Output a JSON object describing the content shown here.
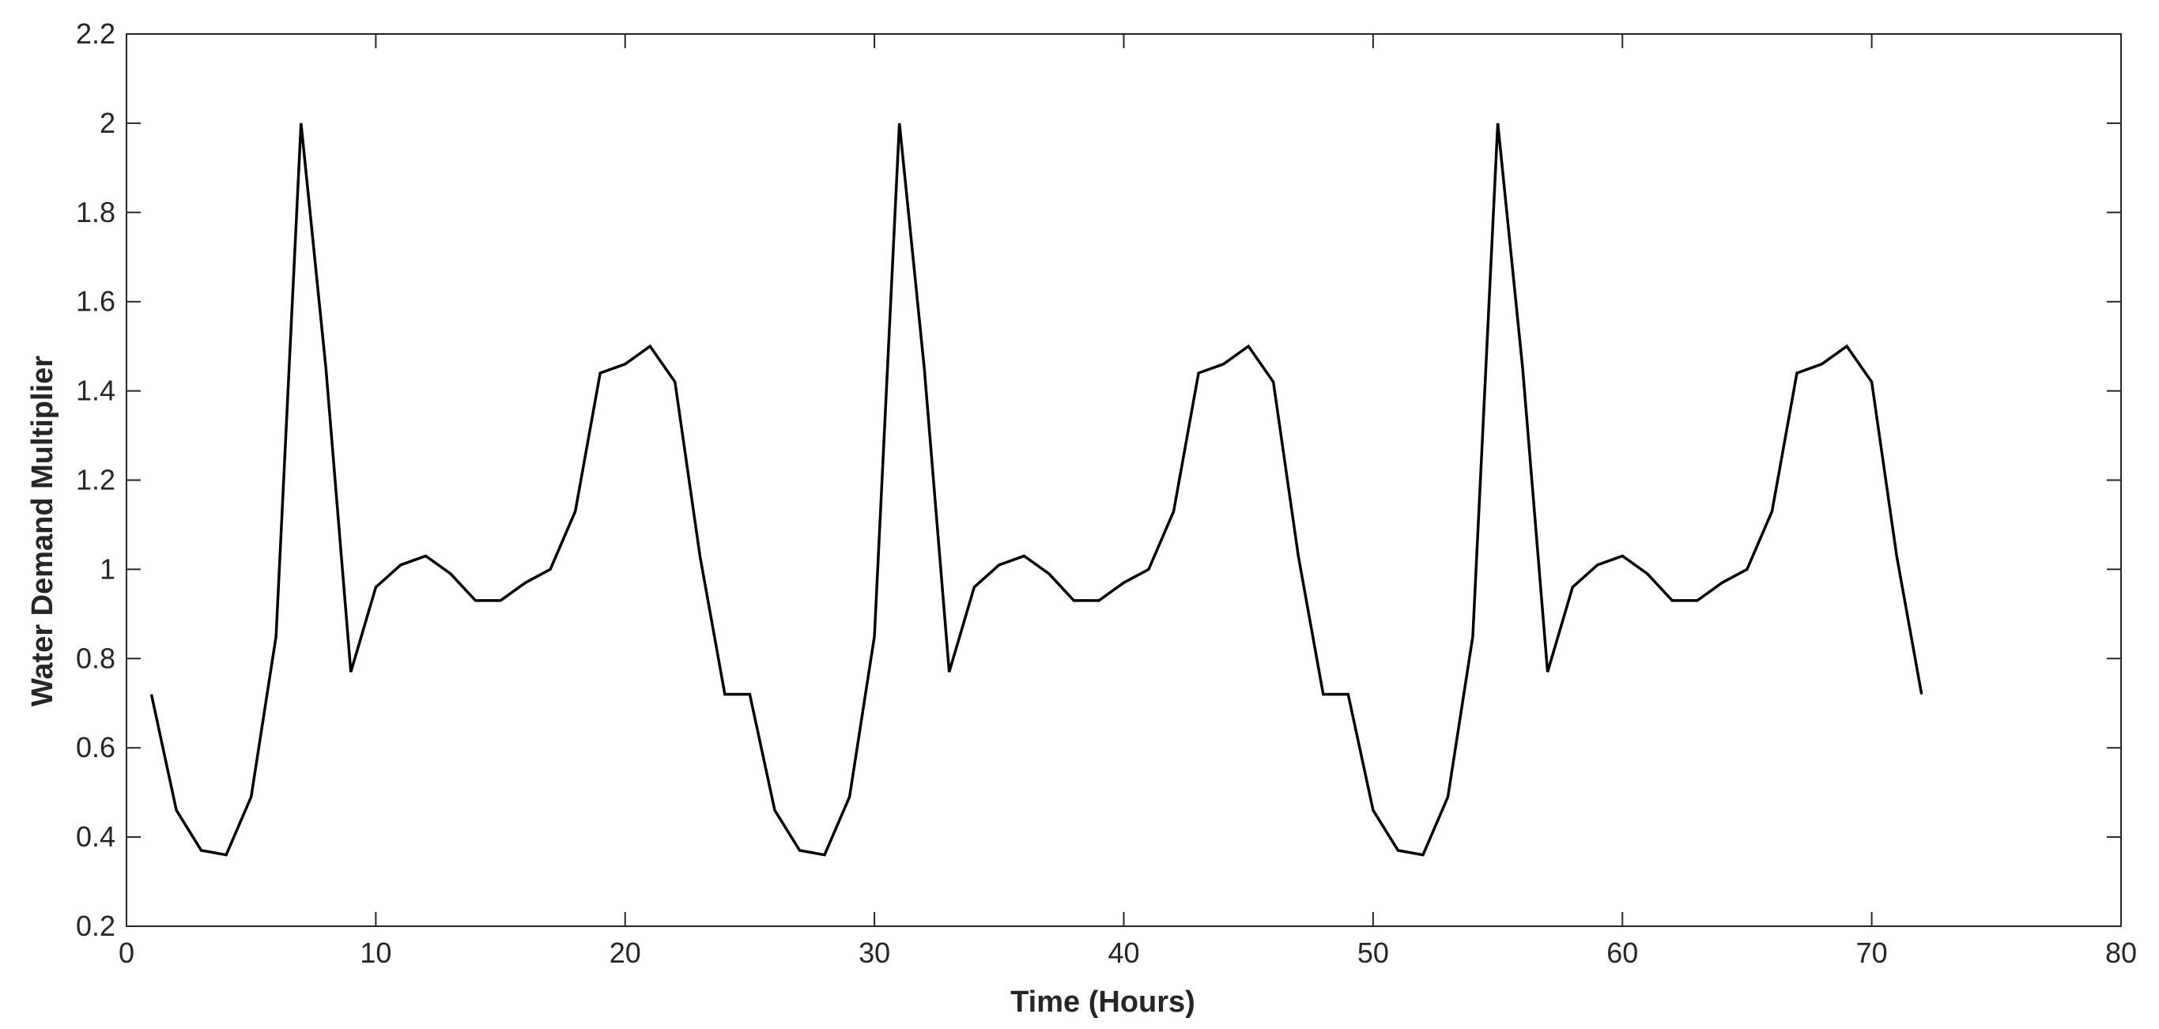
{
  "chart_data": {
    "type": "line",
    "title": "",
    "xlabel": "Time (Hours)",
    "ylabel": "Water Demand Multiplier",
    "xlim": [
      0,
      80
    ],
    "ylim": [
      0.2,
      2.2
    ],
    "xticks": [
      0,
      10,
      20,
      30,
      40,
      50,
      60,
      70,
      80
    ],
    "yticks": [
      0.2,
      0.4,
      0.6,
      0.8,
      1,
      1.2,
      1.4,
      1.6,
      1.8,
      2,
      2.2
    ],
    "xtick_labels": [
      "0",
      "10",
      "20",
      "30",
      "40",
      "50",
      "60",
      "70",
      "80"
    ],
    "ytick_labels": [
      "0.2",
      "0.4",
      "0.6",
      "0.8",
      "1",
      "1.2",
      "1.4",
      "1.6",
      "1.8",
      "2",
      "2.2"
    ],
    "grid": false,
    "box": true,
    "line_color": "#000000",
    "series": [
      {
        "x": [
          1,
          2,
          3,
          4,
          5,
          6,
          7,
          8,
          9,
          10,
          11,
          12,
          13,
          14,
          15,
          16,
          17,
          18,
          19,
          20,
          21,
          22,
          23,
          24,
          25,
          26,
          27,
          28,
          29,
          30,
          31,
          32,
          33,
          34,
          35,
          36,
          37,
          38,
          39,
          40,
          41,
          42,
          43,
          44,
          45,
          46,
          47,
          48,
          49,
          50,
          51,
          52,
          53,
          54,
          55,
          56,
          57,
          58,
          59,
          60,
          61,
          62,
          63,
          64,
          65,
          66,
          67,
          68,
          69,
          70,
          71,
          72
        ],
        "values": [
          0.72,
          0.46,
          0.37,
          0.36,
          0.49,
          0.85,
          2.0,
          1.45,
          0.77,
          0.96,
          1.01,
          1.03,
          0.99,
          0.93,
          0.93,
          0.97,
          1.0,
          1.13,
          1.44,
          1.46,
          1.5,
          1.42,
          1.03,
          0.72,
          0.72,
          0.46,
          0.37,
          0.36,
          0.49,
          0.85,
          2.0,
          1.45,
          0.77,
          0.96,
          1.01,
          1.03,
          0.99,
          0.93,
          0.93,
          0.97,
          1.0,
          1.13,
          1.44,
          1.46,
          1.5,
          1.42,
          1.03,
          0.72,
          0.72,
          0.46,
          0.37,
          0.36,
          0.49,
          0.85,
          2.0,
          1.45,
          0.77,
          0.96,
          1.01,
          1.03,
          0.99,
          0.93,
          0.93,
          0.97,
          1.0,
          1.13,
          1.44,
          1.46,
          1.5,
          1.42,
          1.03,
          0.72
        ]
      }
    ]
  }
}
